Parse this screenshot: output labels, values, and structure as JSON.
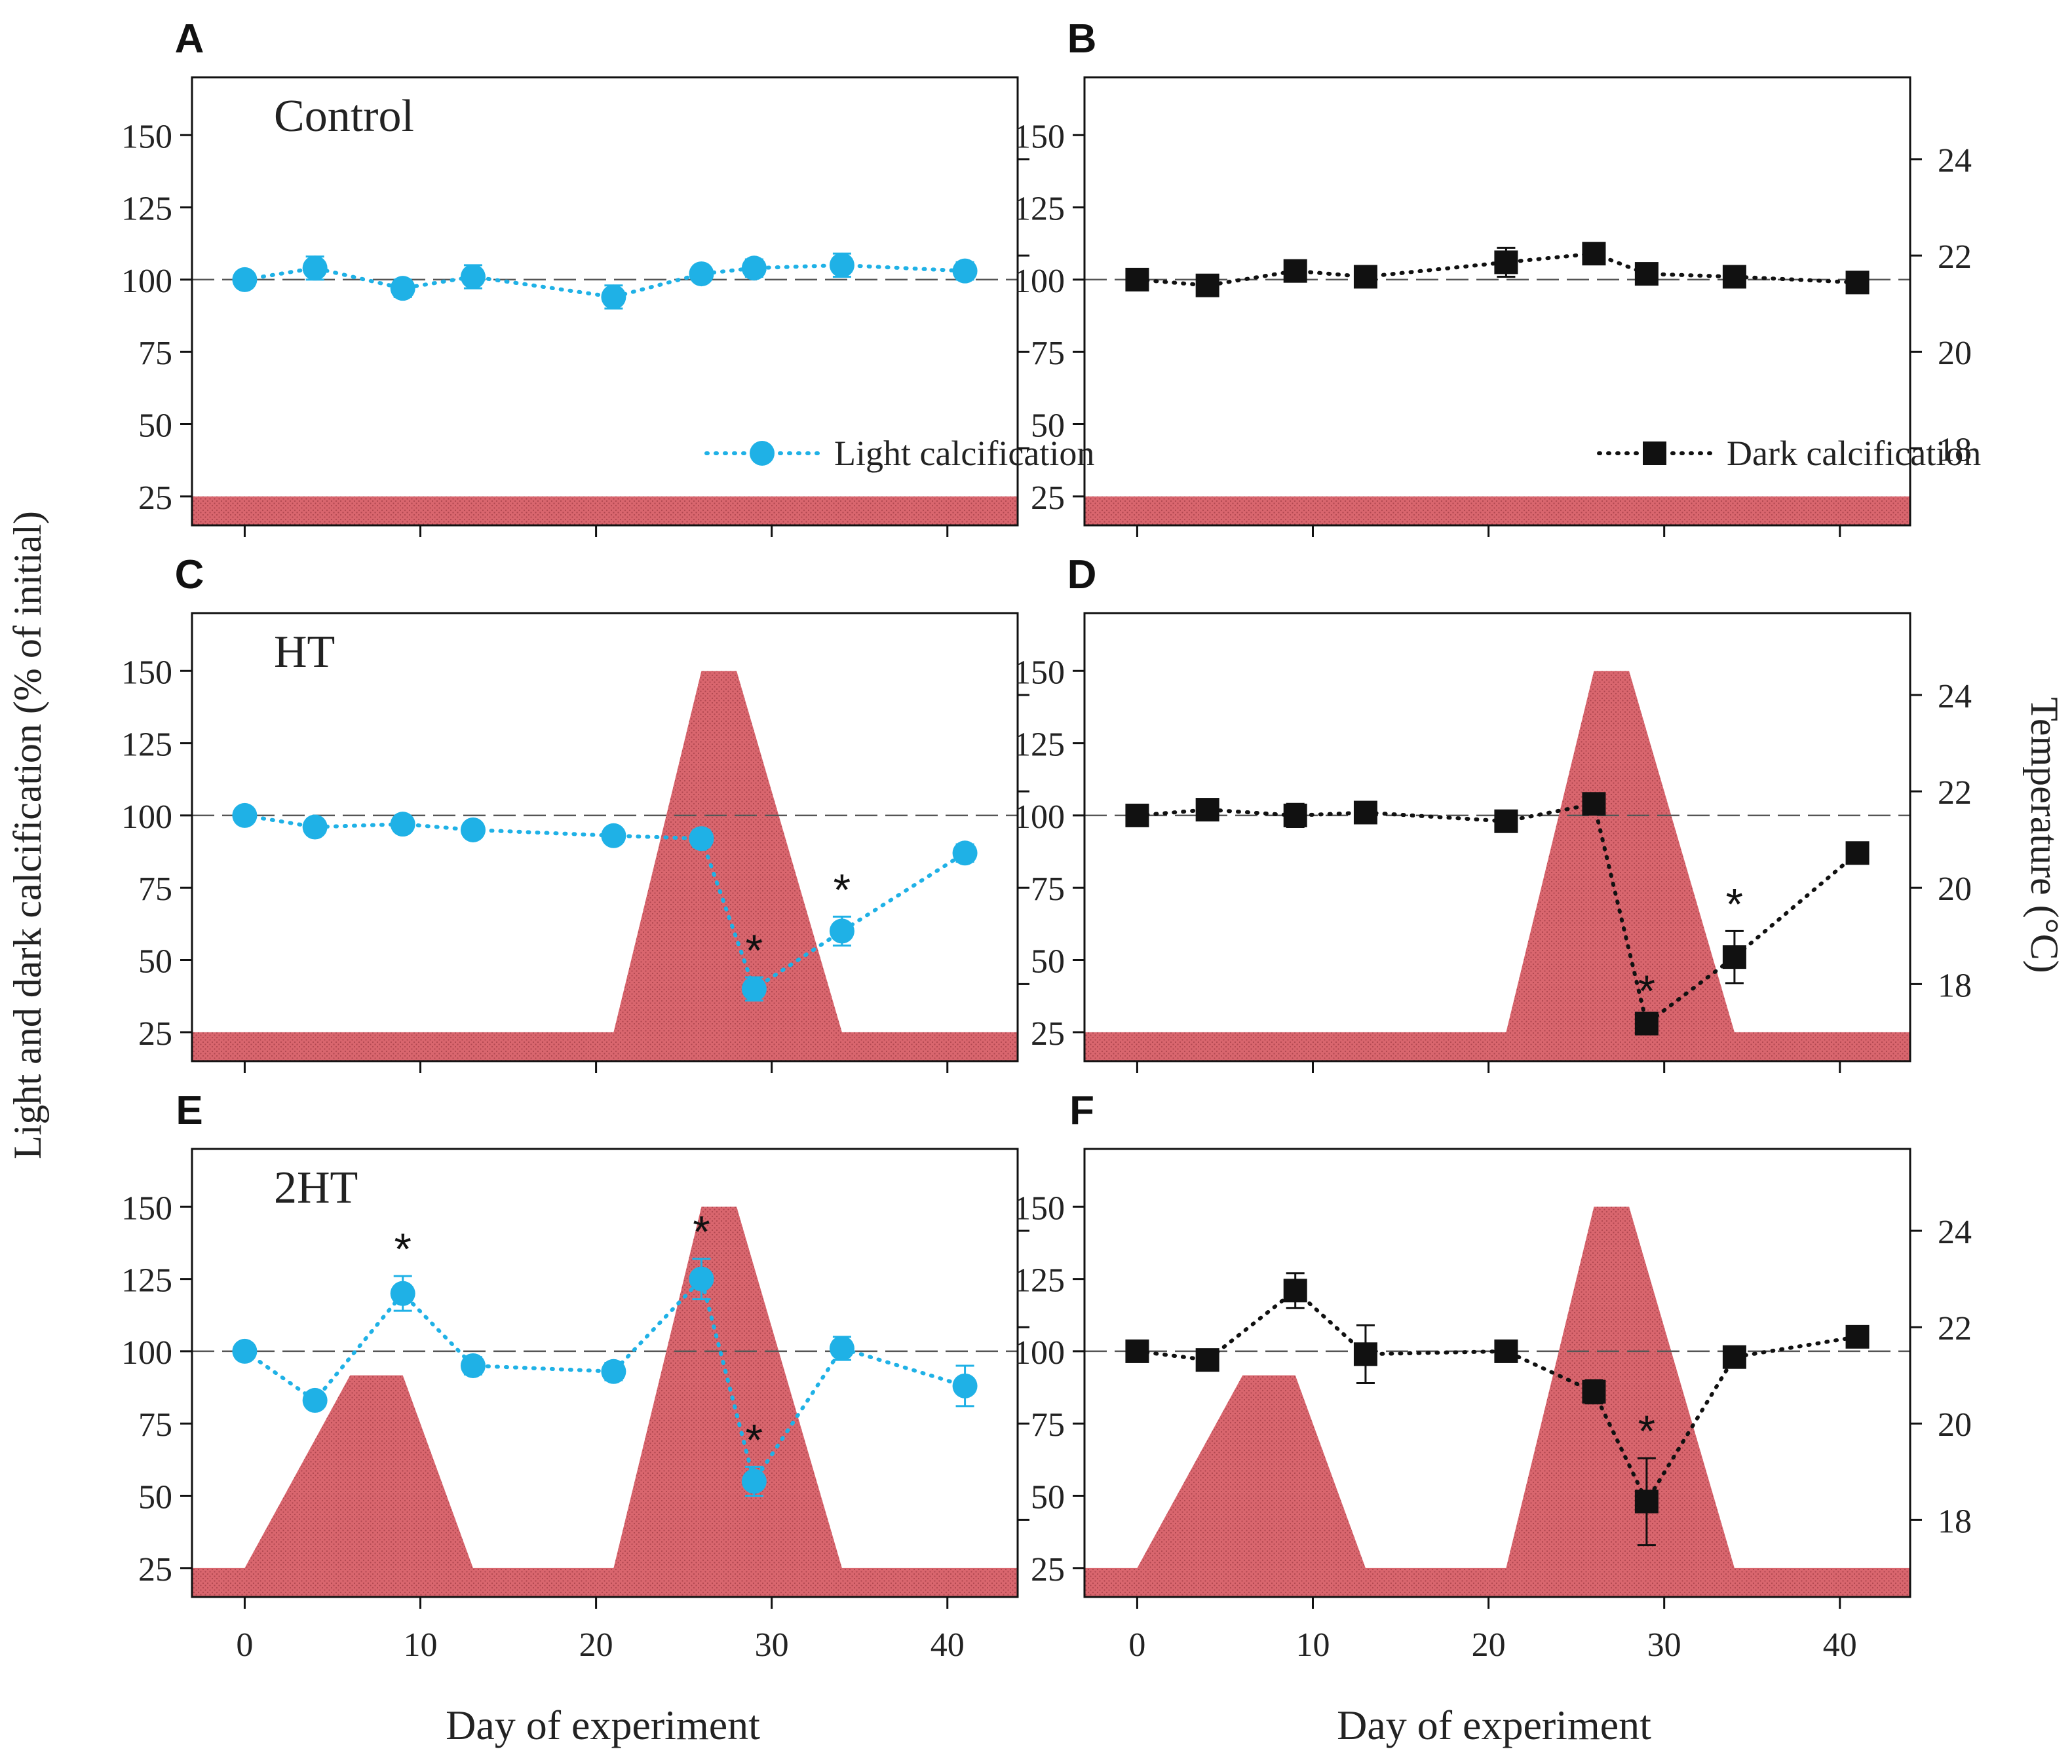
{
  "figure": {
    "ylabel_left": "Light and dark calcification (% of initial)",
    "ylabel_right": "Temperature (°C)",
    "xlabel": "Day of experiment"
  },
  "colors": {
    "light_series": "#1fb1e6",
    "dark_series": "#111111",
    "temperature_fill": "#d9666e",
    "reference_line": "#555555"
  },
  "chart_data": [
    {
      "panel": "A",
      "type": "line",
      "title": "Control",
      "series_name": "Light calcification",
      "marker": "circle",
      "x": [
        0,
        4,
        9,
        13,
        21,
        26,
        29,
        34,
        41
      ],
      "y": [
        100,
        104,
        97,
        101,
        94,
        102,
        104,
        105,
        103
      ],
      "yerr": [
        2,
        4,
        3,
        4,
        4,
        2,
        3,
        4,
        3
      ],
      "significant_x": [],
      "temperature": {
        "x": [
          -3,
          44
        ],
        "y": [
          17,
          17
        ]
      },
      "xlim": [
        -3,
        44
      ],
      "ylim": [
        15,
        170
      ],
      "ytick_values": [
        25,
        50,
        75,
        100,
        125,
        150
      ],
      "temp_lim": [
        16.4,
        25.7
      ],
      "temp_ticks": [
        18,
        20,
        22,
        24
      ],
      "xticks": [
        0,
        10,
        20,
        30,
        40
      ],
      "reference_y": 100,
      "show_legend": true
    },
    {
      "panel": "B",
      "type": "line",
      "title": "",
      "series_name": "Dark calcification",
      "marker": "square",
      "x": [
        0,
        4,
        9,
        13,
        21,
        26,
        29,
        34,
        41
      ],
      "y": [
        100,
        98,
        103,
        101,
        106,
        109,
        102,
        101,
        99
      ],
      "yerr": [
        2,
        2,
        3,
        2,
        5,
        3,
        2,
        2,
        2
      ],
      "significant_x": [],
      "temperature": {
        "x": [
          -3,
          44
        ],
        "y": [
          17,
          17
        ]
      },
      "xlim": [
        -3,
        44
      ],
      "ylim": [
        15,
        170
      ],
      "ytick_values": [
        25,
        50,
        75,
        100,
        125,
        150
      ],
      "temp_lim": [
        16.4,
        25.7
      ],
      "temp_ticks": [
        18,
        20,
        22,
        24
      ],
      "xticks": [
        0,
        10,
        20,
        30,
        40
      ],
      "reference_y": 100,
      "show_legend": true
    },
    {
      "panel": "C",
      "type": "line",
      "title": "HT",
      "series_name": "Light calcification",
      "marker": "circle",
      "x": [
        0,
        4,
        9,
        13,
        21,
        26,
        29,
        34,
        41
      ],
      "y": [
        100,
        96,
        97,
        95,
        93,
        92,
        40,
        60,
        87
      ],
      "yerr": [
        2,
        2,
        2,
        2,
        2,
        3,
        4,
        5,
        3
      ],
      "significant_x": [
        29,
        34
      ],
      "temperature": {
        "x": [
          -3,
          21,
          26,
          28,
          34,
          44
        ],
        "y": [
          17,
          17,
          24.5,
          24.5,
          17,
          17
        ]
      },
      "xlim": [
        -3,
        44
      ],
      "ylim": [
        15,
        170
      ],
      "ytick_values": [
        25,
        50,
        75,
        100,
        125,
        150
      ],
      "temp_lim": [
        16.4,
        25.7
      ],
      "temp_ticks": [
        18,
        20,
        22,
        24
      ],
      "xticks": [
        0,
        10,
        20,
        30,
        40
      ],
      "reference_y": 100,
      "show_legend": false
    },
    {
      "panel": "D",
      "type": "line",
      "title": "",
      "series_name": "Dark calcification",
      "marker": "square",
      "x": [
        0,
        4,
        9,
        13,
        21,
        26,
        29,
        34,
        41
      ],
      "y": [
        100,
        102,
        100,
        101,
        98,
        104,
        28,
        51,
        87
      ],
      "yerr": [
        2,
        2,
        4,
        2,
        2,
        3,
        2,
        9,
        2
      ],
      "significant_x": [
        29,
        34
      ],
      "temperature": {
        "x": [
          -3,
          21,
          26,
          28,
          34,
          44
        ],
        "y": [
          17,
          17,
          24.5,
          24.5,
          17,
          17
        ]
      },
      "xlim": [
        -3,
        44
      ],
      "ylim": [
        15,
        170
      ],
      "ytick_values": [
        25,
        50,
        75,
        100,
        125,
        150
      ],
      "temp_lim": [
        16.4,
        25.7
      ],
      "temp_ticks": [
        18,
        20,
        22,
        24
      ],
      "xticks": [
        0,
        10,
        20,
        30,
        40
      ],
      "reference_y": 100,
      "show_legend": false
    },
    {
      "panel": "E",
      "type": "line",
      "title": "2HT",
      "series_name": "Light calcification",
      "marker": "circle",
      "x": [
        0,
        4,
        9,
        13,
        21,
        26,
        29,
        34,
        41
      ],
      "y": [
        100,
        83,
        120,
        95,
        93,
        125,
        55,
        101,
        88
      ],
      "yerr": [
        2,
        2,
        6,
        3,
        3,
        7,
        5,
        4,
        7
      ],
      "significant_x": [
        9,
        26,
        29
      ],
      "temperature": {
        "x": [
          -3,
          0,
          6,
          9,
          13,
          21,
          26,
          28,
          34,
          44
        ],
        "y": [
          17,
          17,
          21,
          21,
          17,
          17,
          24.5,
          24.5,
          17,
          17
        ]
      },
      "xlim": [
        -3,
        44
      ],
      "ylim": [
        15,
        170
      ],
      "ytick_values": [
        25,
        50,
        75,
        100,
        125,
        150
      ],
      "temp_lim": [
        16.4,
        25.7
      ],
      "temp_ticks": [
        18,
        20,
        22,
        24
      ],
      "xticks": [
        0,
        10,
        20,
        30,
        40
      ],
      "reference_y": 100,
      "show_legend": false
    },
    {
      "panel": "F",
      "type": "line",
      "title": "",
      "series_name": "Dark calcification",
      "marker": "square",
      "x": [
        0,
        4,
        9,
        13,
        21,
        26,
        29,
        34,
        41
      ],
      "y": [
        100,
        97,
        121,
        99,
        100,
        86,
        48,
        98,
        105
      ],
      "yerr": [
        2,
        2,
        6,
        10,
        2,
        4,
        15,
        2,
        2
      ],
      "significant_x": [
        29
      ],
      "temperature": {
        "x": [
          -3,
          0,
          6,
          9,
          13,
          21,
          26,
          28,
          34,
          44
        ],
        "y": [
          17,
          17,
          21,
          21,
          17,
          17,
          24.5,
          24.5,
          17,
          17
        ]
      },
      "xlim": [
        -3,
        44
      ],
      "ylim": [
        15,
        170
      ],
      "ytick_values": [
        25,
        50,
        75,
        100,
        125,
        150
      ],
      "temp_lim": [
        16.4,
        25.7
      ],
      "temp_ticks": [
        18,
        20,
        22,
        24
      ],
      "xticks": [
        0,
        10,
        20,
        30,
        40
      ],
      "reference_y": 100,
      "show_legend": false
    }
  ]
}
